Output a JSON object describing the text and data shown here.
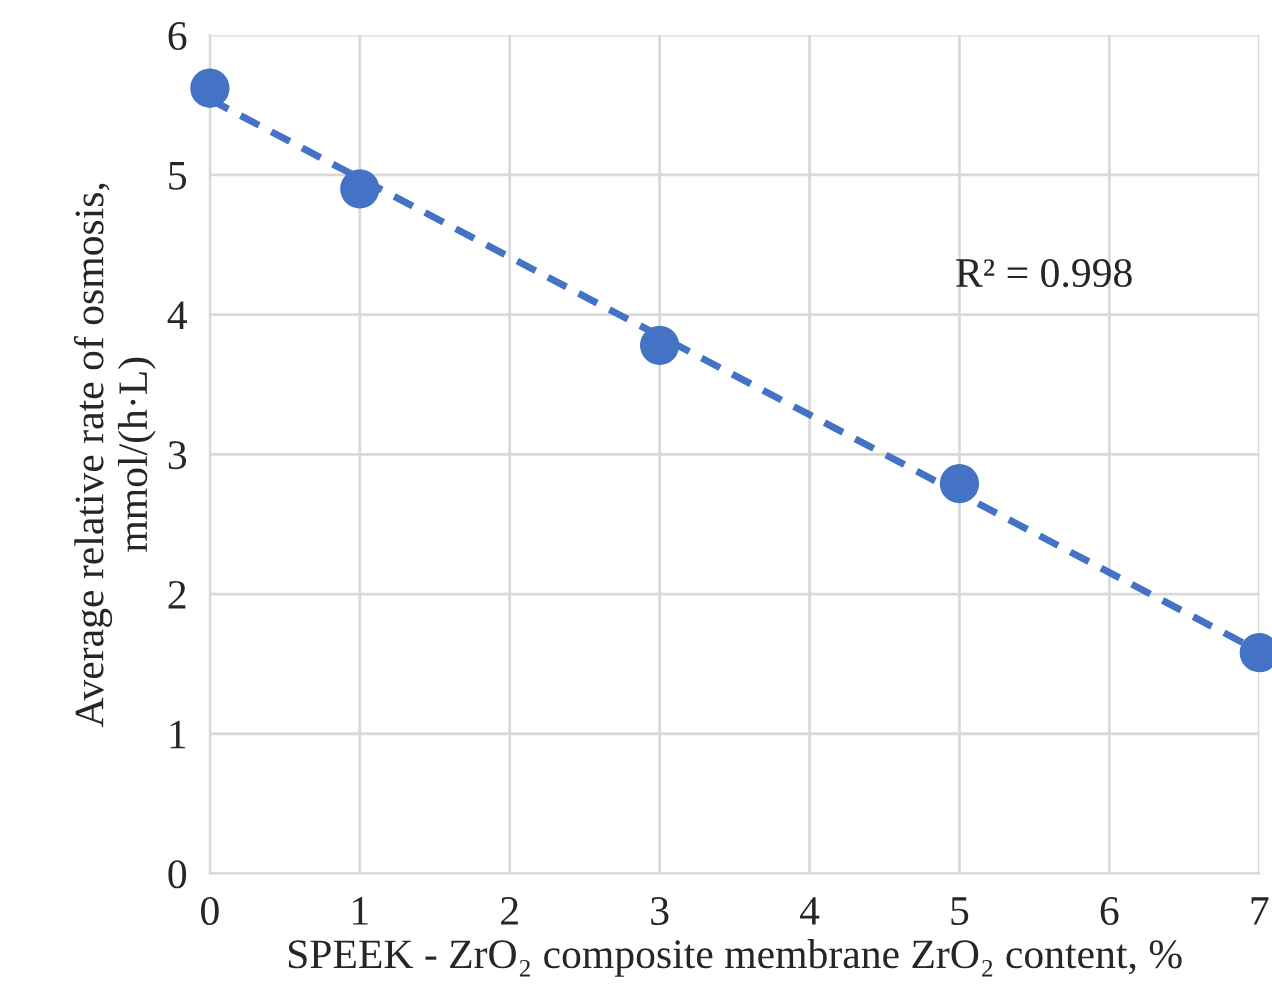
{
  "chart_data": {
    "type": "scatter",
    "xlabel": "SPEEK - ZrO₂ composite membrane ZrO₂ content, %",
    "ylabel": "Average relative rate of osmosis,\nmmol/(h·L)",
    "x": [
      0,
      1,
      3,
      5,
      7
    ],
    "series": [
      {
        "color": "#4472c4",
        "marker": "circle",
        "values": [
          5.62,
          4.9,
          3.78,
          2.79,
          1.58
        ]
      },
      {
        "type": "line",
        "color": "#4472c4",
        "line_style": "dashed",
        "marker": "none",
        "x": [
          0,
          7
        ],
        "values": [
          5.54,
          1.59
        ]
      }
    ],
    "annotations": [
      "R² = 0.998"
    ],
    "xlim": [
      0,
      7
    ],
    "xticks": [
      0,
      1,
      2,
      3,
      4,
      5,
      6,
      7
    ],
    "ylim": [
      0,
      6
    ],
    "yticks": [
      0,
      1,
      2,
      3,
      4,
      5,
      6
    ],
    "grid": true
  }
}
